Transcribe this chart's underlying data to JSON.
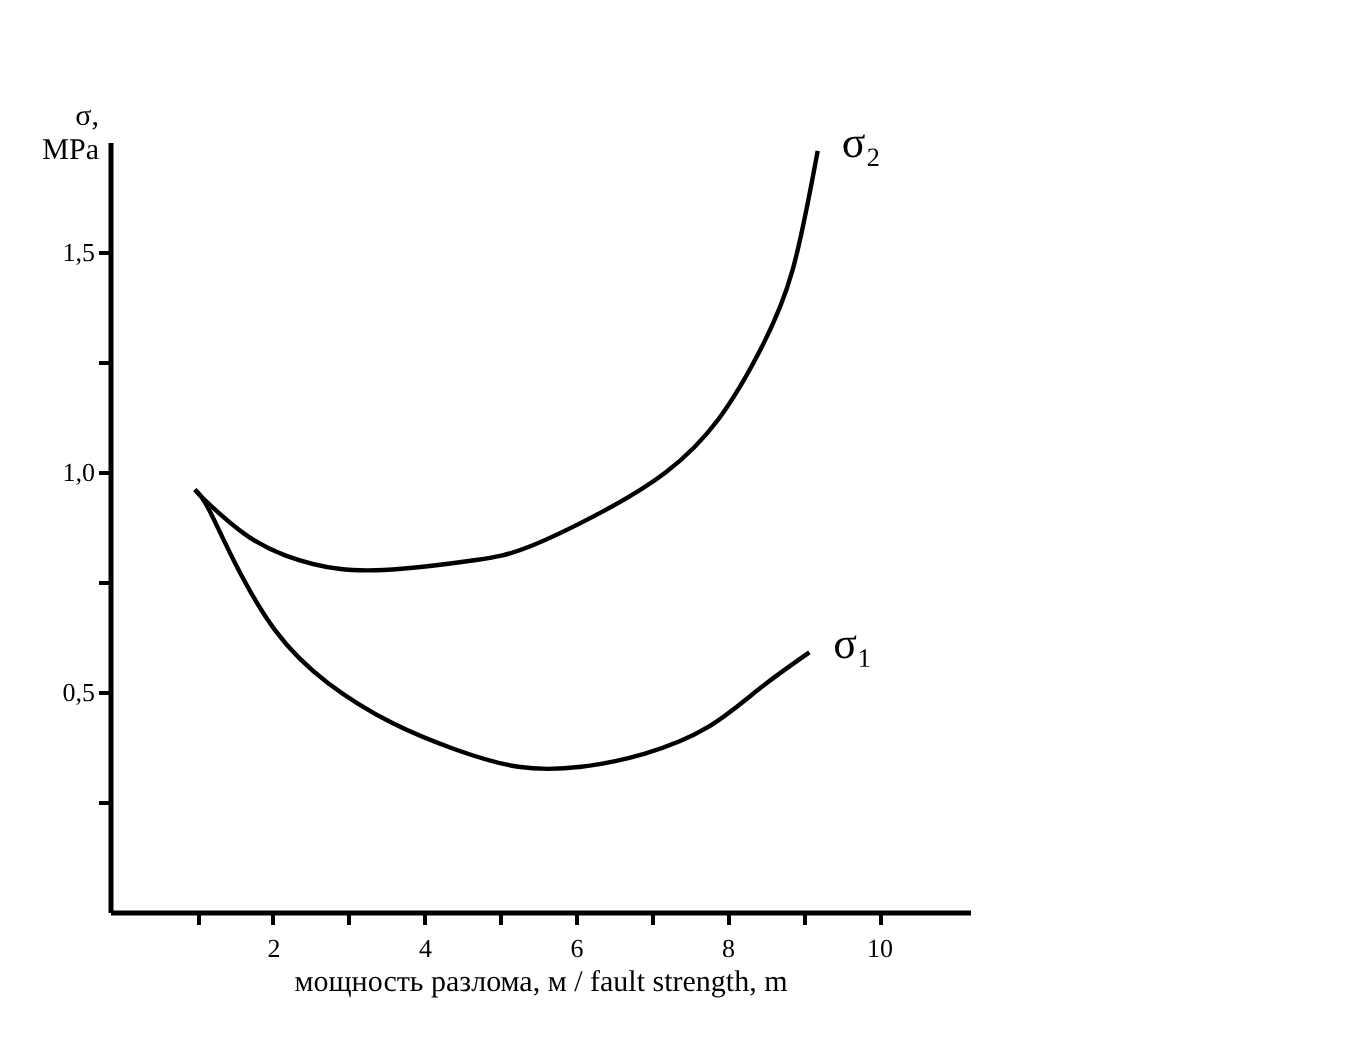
{
  "chart_data": {
    "type": "line",
    "xlabel": "мощность разлома, м / fault strength, m",
    "ylabel": "σ, MPa",
    "xlim": [
      -0.15,
      11.2
    ],
    "ylim": [
      0,
      1.75
    ],
    "xticks": [
      {
        "value": 1,
        "label": null
      },
      2,
      {
        "value": 3,
        "label": null
      },
      4,
      {
        "value": 5,
        "label": null
      },
      6,
      {
        "value": 7,
        "label": null
      },
      8,
      {
        "value": 9,
        "label": null
      },
      10
    ],
    "yticks": [
      {
        "value": 0.25,
        "label": null
      },
      {
        "value": 0.5,
        "label": "0,5"
      },
      {
        "value": 0.75,
        "label": null
      },
      {
        "value": 1.0,
        "label": "1,0"
      },
      {
        "value": 1.25,
        "label": null
      },
      {
        "value": 1.5,
        "label": "1,5"
      }
    ],
    "grid": false,
    "marker": "none",
    "line_style": "solid",
    "series": [
      {
        "name": "σ₂",
        "color": "#000000",
        "x": [
          0.97,
          1.14,
          1.62,
          2.17,
          2.87,
          3.7,
          4.68,
          5.38,
          6.35,
          7.19,
          7.88,
          8.44,
          8.86,
          9.19
        ],
        "values": [
          0.96,
          0.93,
          0.86,
          0.81,
          0.78,
          0.78,
          0.8,
          0.83,
          0.91,
          1.0,
          1.12,
          1.28,
          1.46,
          1.73
        ]
      },
      {
        "name": "σ₁",
        "color": "#000000",
        "x": [
          0.97,
          1.14,
          1.48,
          2.03,
          2.73,
          3.57,
          4.4,
          5.24,
          6.07,
          6.91,
          7.74,
          8.44,
          9.08
        ],
        "values": [
          0.96,
          0.92,
          0.8,
          0.64,
          0.52,
          0.43,
          0.37,
          0.33,
          0.33,
          0.36,
          0.42,
          0.51,
          0.59
        ]
      }
    ]
  }
}
